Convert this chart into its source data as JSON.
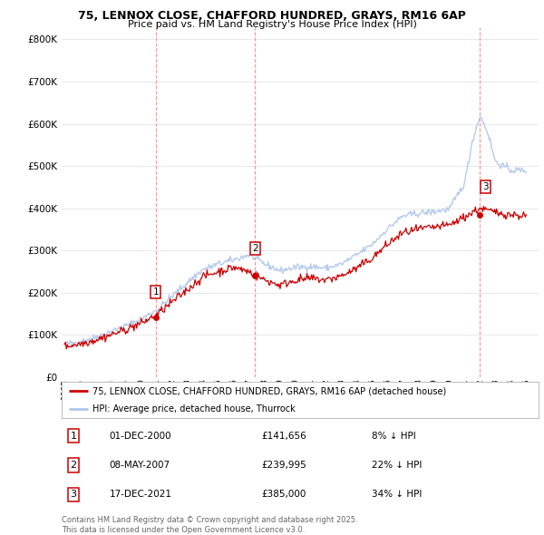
{
  "title_line1": "75, LENNOX CLOSE, CHAFFORD HUNDRED, GRAYS, RM16 6AP",
  "title_line2": "Price paid vs. HM Land Registry's House Price Index (HPI)",
  "ytick_values": [
    0,
    100000,
    200000,
    300000,
    400000,
    500000,
    600000,
    700000,
    800000
  ],
  "ylim": [
    0,
    830000
  ],
  "xlim_start": 1994.8,
  "xlim_end": 2025.8,
  "sale_dates": [
    2000.92,
    2007.37,
    2021.96
  ],
  "sale_prices": [
    141656,
    239995,
    385000
  ],
  "sale_labels": [
    "1",
    "2",
    "3"
  ],
  "sale_info": [
    {
      "label": "1",
      "date": "01-DEC-2000",
      "price": "£141,656",
      "hpi": "8% ↓ HPI"
    },
    {
      "label": "2",
      "date": "08-MAY-2007",
      "price": "£239,995",
      "hpi": "22% ↓ HPI"
    },
    {
      "label": "3",
      "date": "17-DEC-2021",
      "price": "£385,000",
      "hpi": "34% ↓ HPI"
    }
  ],
  "hpi_color": "#aec6e8",
  "price_color": "#cc0000",
  "vline_color": "#ff8888",
  "grid_color": "#e8e8e8",
  "legend_label_price": "75, LENNOX CLOSE, CHAFFORD HUNDRED, GRAYS, RM16 6AP (detached house)",
  "legend_label_hpi": "HPI: Average price, detached house, Thurrock",
  "footer_text": "Contains HM Land Registry data © Crown copyright and database right 2025.\nThis data is licensed under the Open Government Licence v3.0.",
  "background_color": "#ffffff",
  "hpi_anchors_x": [
    1995,
    1996,
    1997,
    1998,
    1999,
    2000,
    2001,
    2002,
    2003,
    2004,
    2005,
    2006,
    2007,
    2008,
    2009,
    2010,
    2011,
    2012,
    2013,
    2014,
    2015,
    2016,
    2017,
    2018,
    2019,
    2020,
    2021,
    2021.5,
    2022,
    2022.5,
    2023,
    2024,
    2025
  ],
  "hpi_anchors_y": [
    78000,
    84000,
    95000,
    108000,
    122000,
    138000,
    160000,
    192000,
    225000,
    255000,
    268000,
    278000,
    290000,
    268000,
    252000,
    260000,
    262000,
    258000,
    268000,
    290000,
    315000,
    352000,
    382000,
    388000,
    392000,
    398000,
    460000,
    560000,
    620000,
    580000,
    510000,
    490000,
    490000
  ],
  "price_anchors_x": [
    1995,
    1996,
    1997,
    1998,
    1999,
    2000,
    2001,
    2002,
    2003,
    2004,
    2005,
    2006,
    2007,
    2008,
    2009,
    2010,
    2011,
    2012,
    2013,
    2014,
    2015,
    2016,
    2017,
    2018,
    2019,
    2020,
    2021,
    2022,
    2023,
    2024,
    2025
  ],
  "price_anchors_y": [
    73000,
    79000,
    88000,
    100000,
    113000,
    128000,
    148000,
    178000,
    208000,
    238000,
    250000,
    260000,
    250000,
    230000,
    218000,
    230000,
    234000,
    230000,
    240000,
    258000,
    282000,
    315000,
    342000,
    350000,
    355000,
    360000,
    380000,
    400000,
    390000,
    385000,
    382000
  ]
}
